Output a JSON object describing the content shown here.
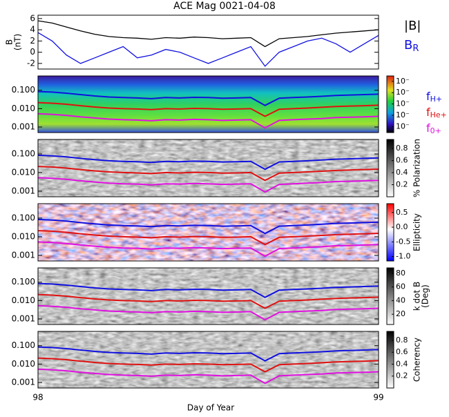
{
  "chart_data": [
    {
      "type": "line",
      "title": "ACE Mag 0021-04-08",
      "ylabel": [
        "B",
        "(nT)"
      ],
      "x": [
        98.0,
        98.0417,
        98.0833,
        98.125,
        98.1667,
        98.2083,
        98.25,
        98.2917,
        98.3333,
        98.375,
        98.4167,
        98.4583,
        98.5,
        98.5417,
        98.5833,
        98.625,
        98.6667,
        98.7083,
        98.75,
        98.7917,
        98.8333,
        98.875,
        98.9167,
        98.9583,
        99.0
      ],
      "series": [
        {
          "name": "|B|",
          "color": "#000000",
          "values": [
            5.6,
            5.2,
            4.5,
            3.8,
            3.2,
            2.8,
            2.6,
            2.5,
            2.3,
            2.6,
            2.5,
            2.7,
            2.6,
            2.4,
            2.5,
            2.6,
            1.0,
            2.4,
            2.6,
            2.8,
            3.1,
            3.4,
            3.6,
            3.8,
            4.0
          ]
        },
        {
          "name": "B",
          "subscript": "R",
          "color": "#1010e0",
          "values": [
            3.5,
            2.0,
            -0.5,
            -2.0,
            -1.0,
            0.0,
            1.0,
            -1.0,
            -0.5,
            0.5,
            0.0,
            -1.0,
            -2.0,
            -1.0,
            0.0,
            1.0,
            -2.5,
            0.0,
            1.0,
            2.0,
            2.5,
            1.5,
            0.0,
            1.5,
            3.0
          ]
        }
      ],
      "xlim": [
        98,
        99
      ],
      "ylim": [
        -3,
        6.6
      ],
      "yticks": [
        -2,
        0,
        2,
        4,
        6
      ]
    },
    {
      "type": "spectrogram",
      "palette": "rainbow",
      "colorbar_ticks": [
        {
          "value": 0.0001,
          "label": "10⁻"
        },
        {
          "value": 0.001,
          "label": "10⁻"
        },
        {
          "value": 0.01,
          "label": "10⁻"
        },
        {
          "value": 0.1,
          "label": "10⁻"
        },
        {
          "value": 1,
          "label": "10⁻"
        }
      ],
      "clim": [
        3e-05,
        3
      ],
      "clog": true
    },
    {
      "type": "spectrogram",
      "palette": "gray",
      "colorbar_label": "% Polarization",
      "colorbar_ticks": [
        0.2,
        0.4,
        0.6,
        0.8
      ],
      "clim": [
        0,
        0.95
      ]
    },
    {
      "type": "spectrogram",
      "palette": "redblue",
      "colorbar_label": "Ellipticity",
      "colorbar_ticks": [
        0.5,
        {
          "value": 0,
          "label": "0.0"
        },
        -0.5,
        {
          "value": -1,
          "label": "-1.0"
        }
      ],
      "clim": [
        -1.15,
        0.8
      ]
    },
    {
      "type": "spectrogram",
      "palette": "gray",
      "colorbar_label": [
        "k dot B",
        "(Deg)"
      ],
      "colorbar_ticks": [
        20,
        40,
        60,
        80
      ],
      "clim": [
        5,
        88
      ]
    },
    {
      "type": "spectrogram",
      "palette": "gray",
      "colorbar_label": "Coherency",
      "colorbar_ticks": [
        0.2,
        0.4,
        0.6,
        0.8
      ],
      "clim": [
        0,
        0.95
      ]
    }
  ],
  "frequency_overlay": {
    "ylim": [
      0.0005,
      0.6
    ],
    "yticks": [
      {
        "value": 0.1,
        "label": "0.100"
      },
      {
        "value": 0.01,
        "label": "0.010"
      },
      {
        "value": 0.001,
        "label": "0.001"
      }
    ],
    "x": [
      98.0,
      98.0417,
      98.0833,
      98.125,
      98.1667,
      98.2083,
      98.25,
      98.2917,
      98.3333,
      98.375,
      98.4167,
      98.4583,
      98.5,
      98.5417,
      98.5833,
      98.625,
      98.6667,
      98.7083,
      98.75,
      98.7917,
      98.8333,
      98.875,
      98.9167,
      98.9583,
      99.0
    ],
    "series": [
      {
        "name": "f",
        "subscript": "H+",
        "color": "#1010e0",
        "values": [
          0.085,
          0.079,
          0.069,
          0.058,
          0.049,
          0.043,
          0.04,
          0.038,
          0.035,
          0.04,
          0.038,
          0.041,
          0.04,
          0.037,
          0.038,
          0.04,
          0.015,
          0.037,
          0.04,
          0.043,
          0.047,
          0.052,
          0.055,
          0.058,
          0.061
        ]
      },
      {
        "name": "f",
        "subscript": "He+",
        "color": "#e01010",
        "values": [
          0.0213,
          0.0198,
          0.0173,
          0.0145,
          0.0123,
          0.0108,
          0.01,
          0.0095,
          0.0088,
          0.01,
          0.0095,
          0.0103,
          0.01,
          0.0093,
          0.0095,
          0.01,
          0.0038,
          0.0093,
          0.01,
          0.0108,
          0.0118,
          0.013,
          0.0138,
          0.0145,
          0.0153
        ]
      },
      {
        "name": "f",
        "subscript": "0+",
        "color": "#e010e0",
        "values": [
          0.0053,
          0.0049,
          0.0043,
          0.0036,
          0.0031,
          0.0027,
          0.0025,
          0.0024,
          0.0022,
          0.0025,
          0.0024,
          0.0026,
          0.0025,
          0.0023,
          0.0024,
          0.0025,
          0.0009,
          0.0023,
          0.0025,
          0.0027,
          0.0029,
          0.0033,
          0.0034,
          0.0036,
          0.0038
        ]
      }
    ]
  },
  "x_axis": {
    "label": "Day of Year",
    "xlim": [
      98,
      99
    ],
    "xticks": [
      98,
      99
    ]
  }
}
